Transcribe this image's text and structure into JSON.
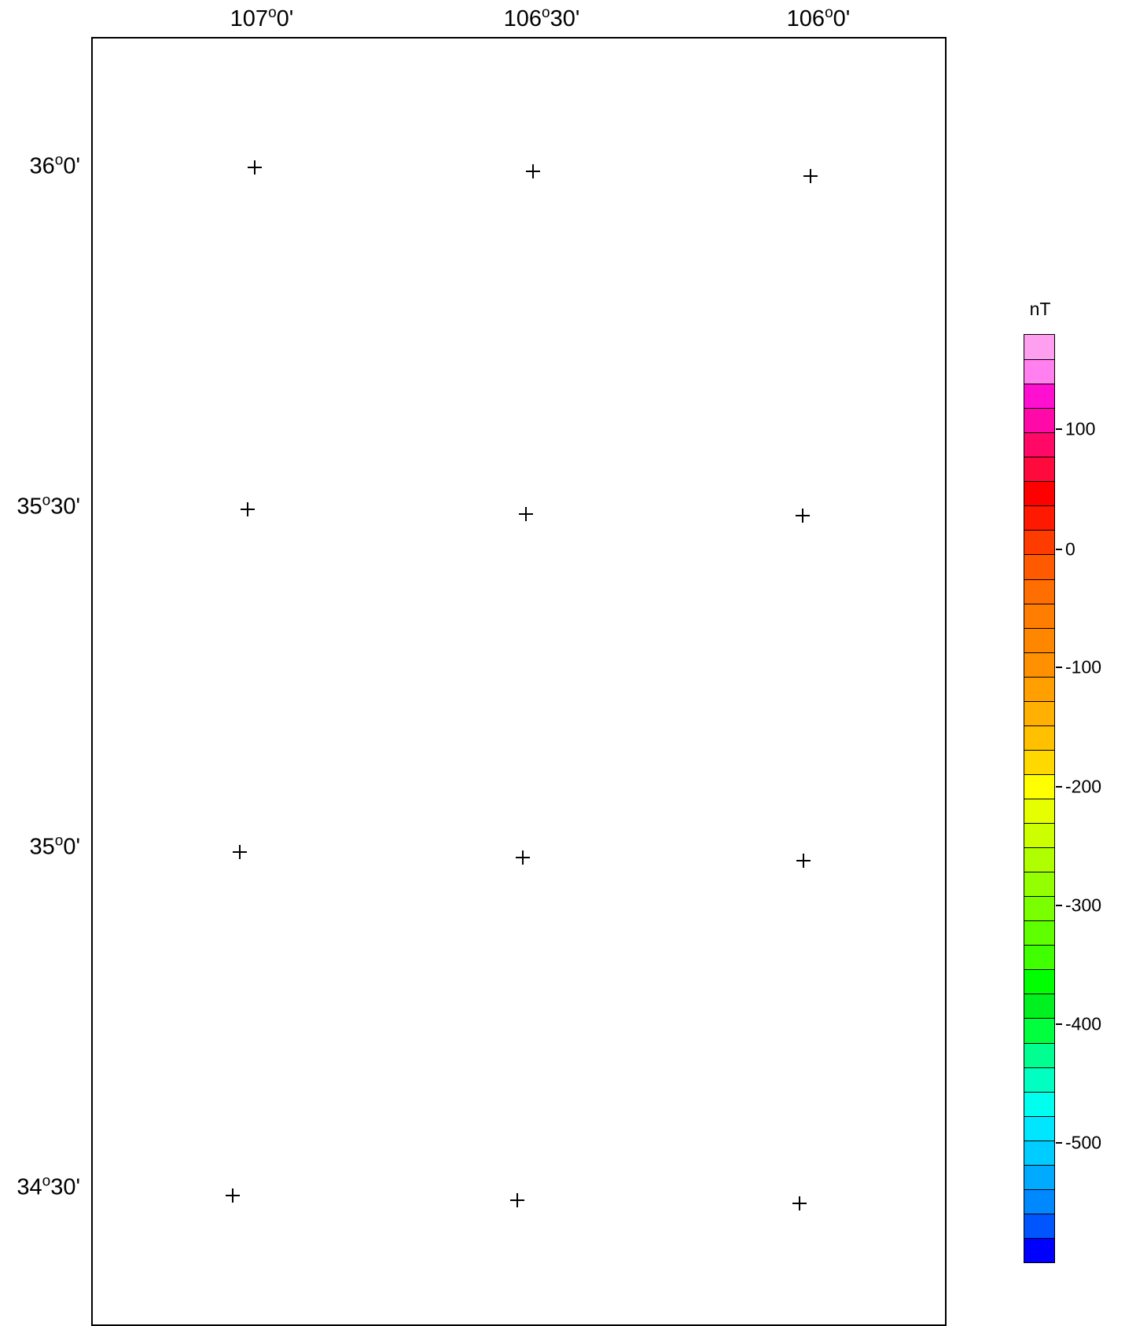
{
  "longitude_labels": [
    {
      "deg": "107",
      "min": "0'"
    },
    {
      "deg": "106",
      "min": "30'"
    },
    {
      "deg": "106",
      "min": "0'"
    }
  ],
  "latitude_labels": [
    {
      "deg": "36",
      "min": "0'"
    },
    {
      "deg": "35",
      "min": "30'"
    },
    {
      "deg": "35",
      "min": "0'"
    },
    {
      "deg": "34",
      "min": "30'"
    }
  ],
  "degree_symbol": "o",
  "colorbar": {
    "unit": "nT",
    "tick_labels": [
      "100",
      "0",
      "-100",
      "-200",
      "-300",
      "-400",
      "-500"
    ],
    "colors_top_to_bottom": [
      "#ff9ff0",
      "#ff80ee",
      "#ff10d0",
      "#ff09a8",
      "#ff0866",
      "#ff0a3c",
      "#ff0000",
      "#ff1900",
      "#ff3c00",
      "#ff5a00",
      "#ff6e00",
      "#ff7d00",
      "#ff8700",
      "#ff9100",
      "#ffa000",
      "#ffb000",
      "#ffc000",
      "#ffd800",
      "#ffff00",
      "#e5ff00",
      "#ccff00",
      "#b0ff00",
      "#94ff00",
      "#7aff00",
      "#5fff00",
      "#3fff00",
      "#00ff00",
      "#00f020",
      "#00ff3c",
      "#00ff90",
      "#00ffc0",
      "#00ffee",
      "#00e6ff",
      "#00cdff",
      "#00aaff",
      "#0088ff",
      "#0055ff",
      "#0000ff"
    ]
  }
}
